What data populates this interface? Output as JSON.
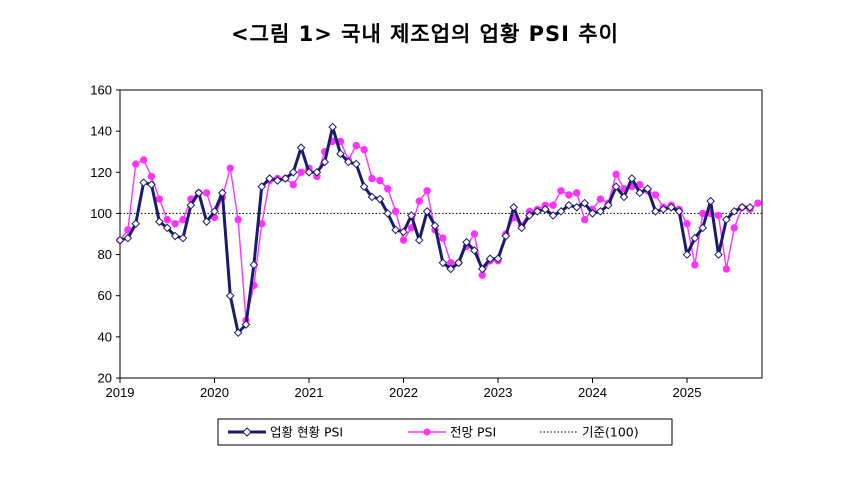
{
  "chart_data": {
    "type": "line",
    "title": "<그림 1> 국내 제조업의 업황 PSI 추이",
    "ylim": [
      20,
      160
    ],
    "yticks": [
      20,
      40,
      60,
      80,
      100,
      120,
      140,
      160
    ],
    "xticks": [
      "2019",
      "2020",
      "2021",
      "2022",
      "2023",
      "2024",
      "2025"
    ],
    "x_start": "2019-01",
    "series": [
      {
        "name": "업황 현황 PSI",
        "color": "#1a1a6e",
        "marker": "diamond",
        "values": [
          87,
          88,
          95,
          115,
          114,
          96,
          93,
          89,
          88,
          104,
          110,
          96,
          101,
          110,
          60,
          42,
          46,
          75,
          113,
          117,
          116,
          117,
          120,
          132,
          120,
          120,
          125,
          142,
          129,
          125,
          124,
          113,
          108,
          107,
          100,
          92,
          91,
          99,
          87,
          101,
          94,
          76,
          73,
          76,
          86,
          82,
          73,
          78,
          78,
          89,
          103,
          93,
          99,
          101,
          102,
          99,
          101,
          104,
          103,
          105,
          100,
          101,
          104,
          113,
          108,
          117,
          110,
          112,
          101,
          102,
          103,
          101,
          80,
          88,
          93,
          106,
          80,
          97,
          101,
          103,
          103
        ]
      },
      {
        "name": "전망 PSI",
        "color": "#ff33ff",
        "marker": "circle",
        "values": [
          87,
          92,
          124,
          126,
          118,
          107,
          97,
          95,
          97,
          107,
          110,
          110,
          98,
          108,
          122,
          97,
          48,
          65,
          95,
          116,
          117,
          117,
          114,
          120,
          122,
          118,
          130,
          135,
          135,
          126,
          133,
          131,
          117,
          116,
          112,
          101,
          87,
          93,
          106,
          111,
          92,
          88,
          76,
          76,
          84,
          90,
          70,
          77,
          77,
          90,
          98,
          94,
          101,
          102,
          104,
          104,
          111,
          109,
          110,
          97,
          102,
          107,
          105,
          119,
          112,
          113,
          114,
          111,
          109,
          103,
          104,
          102,
          95,
          75,
          100,
          100,
          99,
          73,
          93,
          103,
          102,
          105
        ]
      }
    ],
    "reference_line": {
      "name": "기준(100)",
      "value": 100,
      "style": "dotted"
    },
    "legend_position": "bottom-center",
    "grid": false
  }
}
